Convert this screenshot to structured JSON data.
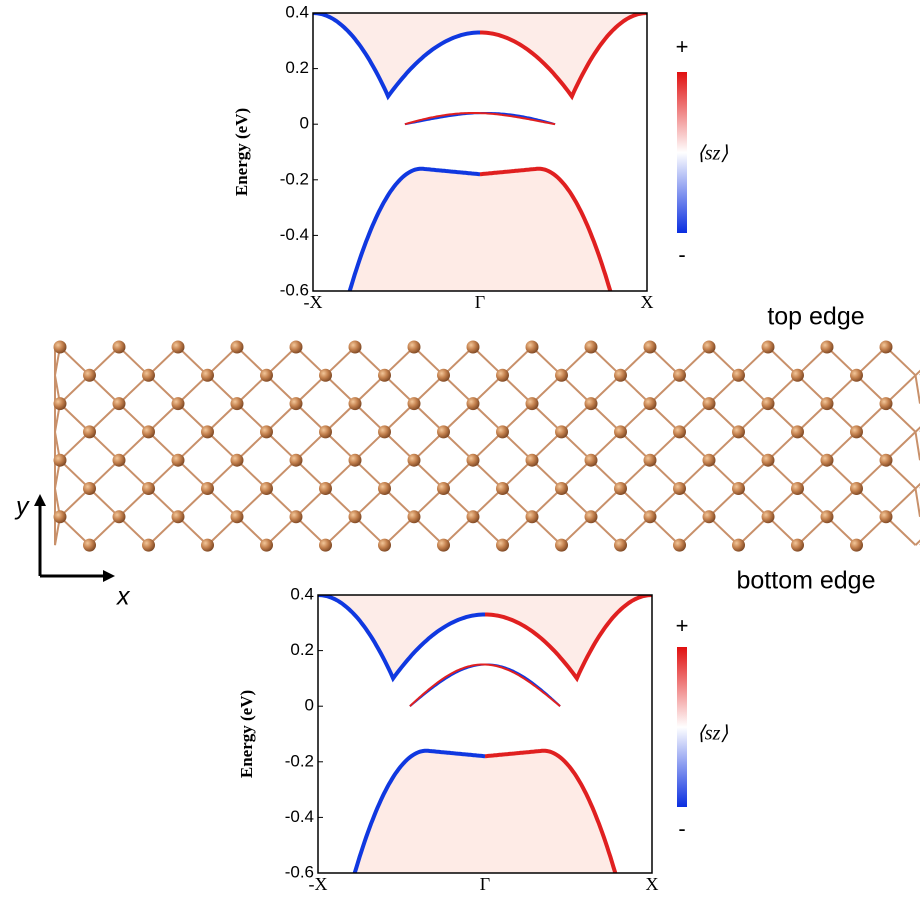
{
  "labels": {
    "top_edge": "top edge",
    "bottom_edge": "bottom edge",
    "axis_y": "y",
    "axis_x": "x"
  },
  "chart_data": [
    {
      "type": "band",
      "ylabel": "Energy (eV)",
      "categories": [
        "-X",
        "Γ",
        "X"
      ],
      "ylim": [
        -0.6,
        0.4
      ],
      "yticks": [
        0.4,
        0.2,
        0,
        -0.2,
        -0.4,
        -0.6
      ],
      "colorbar": {
        "plus": "+",
        "minus": "-",
        "label": "⟨sz⟩",
        "colors": [
          "#e01010",
          "#ffffff",
          "#0a2ee0"
        ]
      }
    },
    {
      "type": "band",
      "ylabel": "Energy (eV)",
      "categories": [
        "-X",
        "Γ",
        "X"
      ],
      "ylim": [
        -0.6,
        0.4
      ],
      "yticks": [
        0.4,
        0.2,
        0,
        -0.2,
        -0.4,
        -0.6
      ],
      "colorbar": {
        "plus": "+",
        "minus": "-",
        "label": "⟨sz⟩",
        "colors": [
          "#e01010",
          "#ffffff",
          "#0a2ee0"
        ]
      }
    }
  ]
}
